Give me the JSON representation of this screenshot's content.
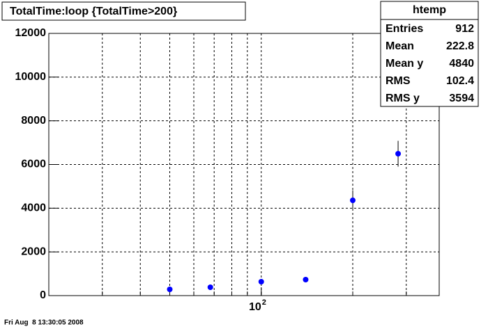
{
  "chart_data": {
    "type": "scatter",
    "title": "TotalTime:loop {TotalTime>200}",
    "x": [
      50,
      68,
      100,
      140,
      200,
      282
    ],
    "series": [
      {
        "name": "htemp",
        "color": "#0000ff",
        "values": [
          286,
          382,
          637,
          732,
          4361,
          6493
        ],
        "errors": [
          20,
          30,
          40,
          40,
          460,
          590
        ]
      }
    ],
    "xlim": [
      20,
      385
    ],
    "xlog": true,
    "xticks": [
      {
        "value": 100,
        "label": "10",
        "exponent": "2"
      }
    ],
    "xgrid": [
      30,
      40,
      50,
      60,
      70,
      80,
      90,
      100,
      200,
      300
    ],
    "ylim": [
      0,
      12000
    ],
    "yticks": [
      0,
      2000,
      4000,
      6000,
      8000,
      10000,
      12000
    ],
    "grid": true,
    "stats": {
      "title": "htemp",
      "rows": [
        [
          "Entries",
          "912"
        ],
        [
          "Mean",
          "222.8"
        ],
        [
          "Mean y",
          "4840"
        ],
        [
          "RMS",
          "102.4"
        ],
        [
          "RMS y",
          "3594"
        ]
      ]
    },
    "footer": "Fri Aug  8 13:30:05 2008"
  }
}
